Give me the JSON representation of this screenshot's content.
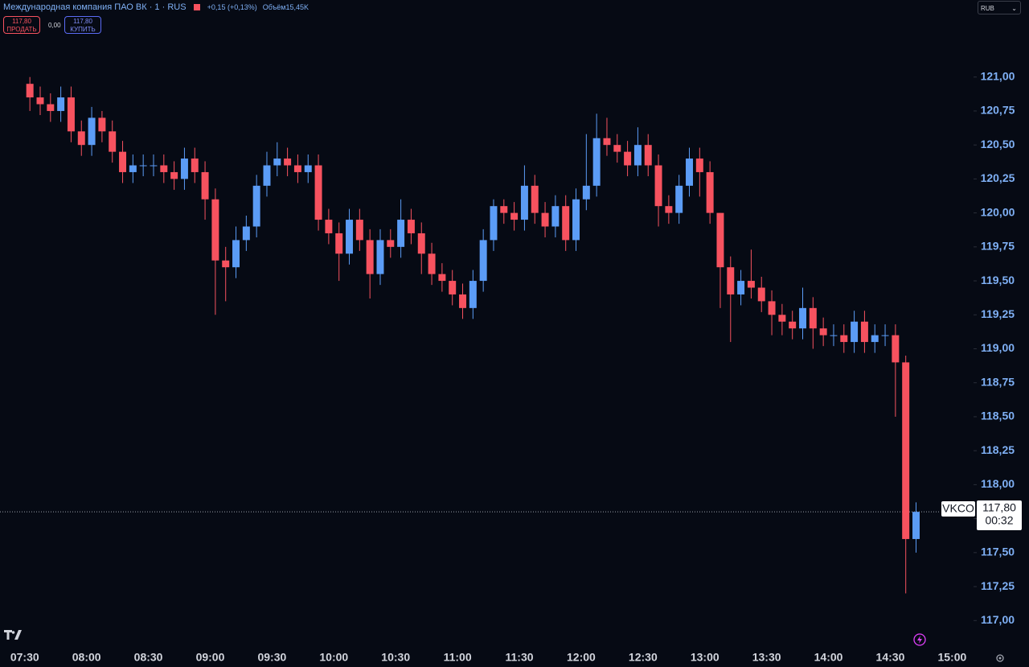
{
  "header": {
    "title": "Международная компания ПАО ВК · 1 · RUS",
    "change": "+0,15 (+0,13%)",
    "volume_label": "Объём",
    "volume": "15,45K",
    "sell_price": "117,80",
    "sell_label": "ПРОДАТЬ",
    "spread": "0,00",
    "buy_price": "117,80",
    "buy_label": "КУПИТЬ",
    "currency": "RUB"
  },
  "chart_data": {
    "type": "candlestick",
    "symbol": "VKCO",
    "countdown": "00:32",
    "up_color": "#5b9cf6",
    "down_color": "#f7525f",
    "last_price": {
      "value": 117.8,
      "label": "117,80"
    },
    "xlim": [
      "07:18",
      "15:10"
    ],
    "ylim": [
      116.83,
      121.33
    ],
    "yticks": [
      {
        "value": 117,
        "label": "117,00"
      },
      {
        "value": 117.25,
        "label": "117,25"
      },
      {
        "value": 117.5,
        "label": "117,50"
      },
      {
        "value": 117.75,
        "label": "117,75"
      },
      {
        "value": 118,
        "label": "118,00"
      },
      {
        "value": 118.25,
        "label": "118,25"
      },
      {
        "value": 118.5,
        "label": "118,50"
      },
      {
        "value": 118.75,
        "label": "118,75"
      },
      {
        "value": 119,
        "label": "119,00"
      },
      {
        "value": 119.25,
        "label": "119,25"
      },
      {
        "value": 119.5,
        "label": "119,50"
      },
      {
        "value": 119.75,
        "label": "119,75"
      },
      {
        "value": 120,
        "label": "120,00"
      },
      {
        "value": 120.25,
        "label": "120,25"
      },
      {
        "value": 120.5,
        "label": "120,50"
      },
      {
        "value": 120.75,
        "label": "120,75"
      },
      {
        "value": 121,
        "label": "121,00"
      }
    ],
    "xticks": [
      "07:30",
      "08:00",
      "08:30",
      "09:00",
      "09:30",
      "10:00",
      "10:30",
      "11:00",
      "11:30",
      "12:00",
      "12:30",
      "13:00",
      "13:30",
      "14:00",
      "14:30",
      "15:00"
    ],
    "x": [
      "07:30",
      "07:35",
      "07:40",
      "07:45",
      "07:50",
      "07:55",
      "08:00",
      "08:05",
      "08:10",
      "08:15",
      "08:20",
      "08:25",
      "08:30",
      "08:35",
      "08:40",
      "08:45",
      "08:50",
      "08:55",
      "09:00",
      "09:05",
      "09:10",
      "09:15",
      "09:20",
      "09:25",
      "09:30",
      "09:35",
      "09:40",
      "09:45",
      "09:50",
      "09:55",
      "10:00",
      "10:05",
      "10:10",
      "10:15",
      "10:20",
      "10:25",
      "10:30",
      "10:35",
      "10:40",
      "10:45",
      "10:50",
      "10:55",
      "11:00",
      "11:05",
      "11:10",
      "11:15",
      "11:20",
      "11:25",
      "11:30",
      "11:35",
      "11:40",
      "11:45",
      "11:50",
      "11:55",
      "12:00",
      "12:05",
      "12:10",
      "12:15",
      "12:20",
      "12:25",
      "12:30",
      "12:35",
      "12:40",
      "12:45",
      "12:50",
      "12:55",
      "13:00",
      "13:05",
      "13:10",
      "13:15",
      "13:20",
      "13:25",
      "13:30",
      "13:35",
      "13:40",
      "13:45",
      "13:50",
      "13:55",
      "14:00",
      "14:05",
      "14:10",
      "14:15",
      "14:20",
      "14:25",
      "14:30",
      "14:35",
      "14:40"
    ],
    "open": [
      120.95,
      120.85,
      120.8,
      120.75,
      120.85,
      120.6,
      120.5,
      120.7,
      120.6,
      120.45,
      120.3,
      120.35,
      120.35,
      120.35,
      120.3,
      120.25,
      120.4,
      120.3,
      120.1,
      119.65,
      119.6,
      119.8,
      119.9,
      120.2,
      120.35,
      120.4,
      120.35,
      120.3,
      120.35,
      119.95,
      119.85,
      119.7,
      119.95,
      119.8,
      119.55,
      119.8,
      119.75,
      119.95,
      119.85,
      119.7,
      119.55,
      119.5,
      119.4,
      119.3,
      119.5,
      119.8,
      120.05,
      120.0,
      119.95,
      120.2,
      120.0,
      119.9,
      120.05,
      119.8,
      120.1,
      120.2,
      120.55,
      120.5,
      120.45,
      120.35,
      120.5,
      120.35,
      120.05,
      120.0,
      120.2,
      120.4,
      120.3,
      120.0,
      119.6,
      119.4,
      119.5,
      119.45,
      119.35,
      119.25,
      119.2,
      119.15,
      119.3,
      119.15,
      119.1,
      119.1,
      119.05,
      119.2,
      119.05,
      119.1,
      119.1,
      118.9,
      117.6
    ],
    "high": [
      121.0,
      120.93,
      120.88,
      120.93,
      120.93,
      120.68,
      120.78,
      120.75,
      120.68,
      120.53,
      120.43,
      120.43,
      120.43,
      120.43,
      120.38,
      120.48,
      120.48,
      120.38,
      120.18,
      119.75,
      119.9,
      119.98,
      120.28,
      120.45,
      120.52,
      120.48,
      120.43,
      120.43,
      120.43,
      120.03,
      119.93,
      120.03,
      120.03,
      119.88,
      119.88,
      119.88,
      120.1,
      120.03,
      119.93,
      119.78,
      119.63,
      119.58,
      119.48,
      119.58,
      119.88,
      120.1,
      120.1,
      120.08,
      120.35,
      120.28,
      120.08,
      120.13,
      120.13,
      120.18,
      120.58,
      120.73,
      120.7,
      120.58,
      120.53,
      120.63,
      120.58,
      120.43,
      120.13,
      120.28,
      120.48,
      120.48,
      120.38,
      120.0,
      119.68,
      119.58,
      119.73,
      119.53,
      119.43,
      119.33,
      119.28,
      119.45,
      119.38,
      119.23,
      119.18,
      119.18,
      119.28,
      119.28,
      119.18,
      119.18,
      119.18,
      118.95,
      117.87
    ],
    "low": [
      120.75,
      120.72,
      120.67,
      120.67,
      120.52,
      120.42,
      120.42,
      120.52,
      120.37,
      120.22,
      120.22,
      120.27,
      120.27,
      120.22,
      120.17,
      120.17,
      120.22,
      119.95,
      119.25,
      119.35,
      119.52,
      119.72,
      119.82,
      120.12,
      120.27,
      120.27,
      120.22,
      120.22,
      119.87,
      119.77,
      119.5,
      119.62,
      119.72,
      119.37,
      119.47,
      119.67,
      119.67,
      119.77,
      119.55,
      119.47,
      119.42,
      119.32,
      119.22,
      119.22,
      119.42,
      119.72,
      119.92,
      119.87,
      119.87,
      119.92,
      119.82,
      119.82,
      119.72,
      119.72,
      120.02,
      120.12,
      120.42,
      120.37,
      120.27,
      120.27,
      120.27,
      119.9,
      119.92,
      119.92,
      120.12,
      120.12,
      119.92,
      119.3,
      119.05,
      119.32,
      119.37,
      119.27,
      119.1,
      119.1,
      119.07,
      119.07,
      119.0,
      119.02,
      119.02,
      118.97,
      118.97,
      118.97,
      118.97,
      119.02,
      118.5,
      117.2,
      117.5
    ],
    "close": [
      120.85,
      120.8,
      120.75,
      120.85,
      120.6,
      120.5,
      120.7,
      120.6,
      120.45,
      120.3,
      120.35,
      120.35,
      120.35,
      120.3,
      120.25,
      120.4,
      120.3,
      120.1,
      119.65,
      119.6,
      119.8,
      119.9,
      120.2,
      120.35,
      120.4,
      120.35,
      120.3,
      120.35,
      119.95,
      119.85,
      119.7,
      119.95,
      119.8,
      119.55,
      119.8,
      119.75,
      119.95,
      119.85,
      119.7,
      119.55,
      119.5,
      119.4,
      119.3,
      119.5,
      119.8,
      120.05,
      120.0,
      119.95,
      120.2,
      120.0,
      119.9,
      120.05,
      119.8,
      120.1,
      120.2,
      120.55,
      120.5,
      120.45,
      120.35,
      120.5,
      120.35,
      120.05,
      120.0,
      120.2,
      120.4,
      120.3,
      120.0,
      119.6,
      119.4,
      119.5,
      119.45,
      119.35,
      119.25,
      119.2,
      119.15,
      119.3,
      119.15,
      119.1,
      119.1,
      119.05,
      119.2,
      119.05,
      119.1,
      119.1,
      118.9,
      117.6,
      117.8
    ]
  }
}
